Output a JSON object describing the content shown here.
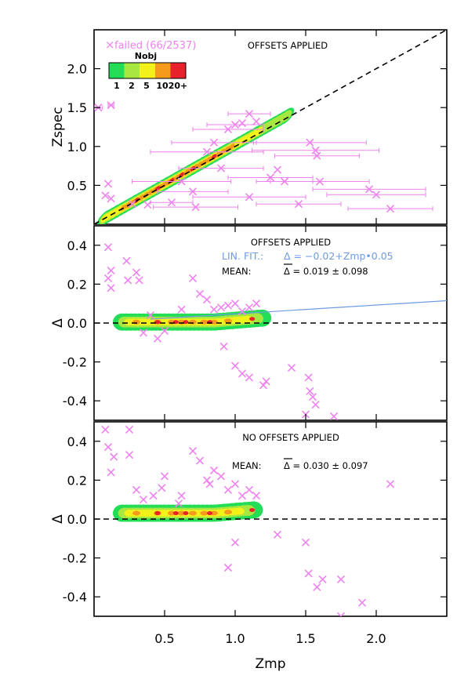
{
  "colors": {
    "failed": "#ee82ee",
    "fit": "#6f9be0",
    "density": [
      "#22dd55",
      "#a8e640",
      "#f2f21a",
      "#f59a1a",
      "#e8222a"
    ]
  },
  "chart_data": {
    "type": "scatter",
    "x_axis": {
      "label": "Zmp",
      "range": [
        0.0,
        2.5
      ],
      "ticks": [
        "0.5",
        "1.0",
        "1.5",
        "2.0"
      ]
    },
    "legend": {
      "failed_label": "failed (66/2537)",
      "colorbar_title": "Nobj",
      "colorbar_labels": [
        "1",
        "2",
        "5",
        "10",
        "20+"
      ]
    },
    "panels": [
      {
        "name": "zspec_vs_zmp",
        "ylabel": "Zspec",
        "ylim": [
          0.0,
          2.5
        ],
        "yticks": [
          0.5,
          1.0,
          1.5,
          2.0
        ],
        "ytick_labels": [
          "0.5",
          "1.0",
          "1.5",
          "2.0"
        ],
        "annotation": "OFFSETS APPLIED",
        "reference_line": "y = x",
        "density_region": [
          [
            0.05,
            0.08
          ],
          [
            0.3,
            0.3
          ],
          [
            0.5,
            0.5
          ],
          [
            0.7,
            0.75
          ],
          [
            0.9,
            1.0
          ],
          [
            1.1,
            1.2
          ],
          [
            1.25,
            1.37
          ]
        ],
        "failed_points": [
          {
            "x": 0.03,
            "y": 1.5,
            "err": 0.03
          },
          {
            "x": 0.12,
            "y": 1.53,
            "err": 0.02
          },
          {
            "x": 0.1,
            "y": 0.52
          },
          {
            "x": 0.08,
            "y": 0.37
          },
          {
            "x": 0.12,
            "y": 0.33
          },
          {
            "x": 0.27,
            "y": 0.26
          },
          {
            "x": 0.38,
            "y": 0.25
          },
          {
            "x": 0.55,
            "y": 0.28,
            "err": 0.15
          },
          {
            "x": 0.62,
            "y": 0.55,
            "err": 0.35
          },
          {
            "x": 0.7,
            "y": 0.42,
            "err": 0.25
          },
          {
            "x": 0.8,
            "y": 0.93,
            "err": 0.4
          },
          {
            "x": 0.85,
            "y": 1.05,
            "err": 0.3
          },
          {
            "x": 0.9,
            "y": 0.72,
            "err": 0.3
          },
          {
            "x": 0.95,
            "y": 1.22,
            "err": 0.25
          },
          {
            "x": 1.0,
            "y": 1.28,
            "err": 0.2
          },
          {
            "x": 1.05,
            "y": 1.3
          },
          {
            "x": 1.1,
            "y": 1.42,
            "err": 0.15
          },
          {
            "x": 1.15,
            "y": 1.32
          },
          {
            "x": 1.1,
            "y": 0.35,
            "err": 0.4
          },
          {
            "x": 1.25,
            "y": 0.6,
            "err": 0.3
          },
          {
            "x": 1.3,
            "y": 0.7
          },
          {
            "x": 1.35,
            "y": 0.55,
            "err": 0.2
          },
          {
            "x": 1.53,
            "y": 1.05,
            "err": 0.4
          },
          {
            "x": 1.57,
            "y": 0.95,
            "err": 0.45
          },
          {
            "x": 1.58,
            "y": 0.88,
            "err": 0.3
          },
          {
            "x": 1.6,
            "y": 0.55,
            "err": 0.35
          },
          {
            "x": 1.95,
            "y": 0.45,
            "err": 0.4
          },
          {
            "x": 2.0,
            "y": 0.38,
            "err": 0.35
          },
          {
            "x": 2.1,
            "y": 0.2,
            "err": 0.3
          },
          {
            "x": 1.45,
            "y": 0.26,
            "err": 0.3
          },
          {
            "x": 0.72,
            "y": 0.22,
            "err": 0.3
          }
        ]
      },
      {
        "name": "delta_offsets_applied",
        "ylabel": "Δ",
        "ylim": [
          -0.5,
          0.5
        ],
        "yticks": [
          -0.4,
          -0.2,
          0.0,
          0.2,
          0.4
        ],
        "ytick_labels": [
          "-0.4",
          "-0.2",
          "0.0",
          "0.2",
          "0.4"
        ],
        "annotation": "OFFSETS APPLIED",
        "fit_label": "LIN. FIT.:",
        "fit_equation": "Δ = −0.02+Zmp•0.05",
        "mean_label": "MEAN:",
        "mean_value": "Δ = 0.019 ± 0.098",
        "fit": {
          "intercept": -0.02,
          "slope": 0.05
        },
        "failed_points": [
          {
            "x": 0.1,
            "y": 0.39
          },
          {
            "x": 0.12,
            "y": 0.27
          },
          {
            "x": 0.1,
            "y": 0.23
          },
          {
            "x": 0.12,
            "y": 0.18
          },
          {
            "x": 0.23,
            "y": 0.32
          },
          {
            "x": 0.24,
            "y": 0.22
          },
          {
            "x": 0.3,
            "y": 0.26
          },
          {
            "x": 0.32,
            "y": 0.22
          },
          {
            "x": 0.4,
            "y": 0.04
          },
          {
            "x": 0.35,
            "y": -0.05
          },
          {
            "x": 0.45,
            "y": -0.08
          },
          {
            "x": 0.5,
            "y": -0.04
          },
          {
            "x": 0.62,
            "y": 0.07
          },
          {
            "x": 0.7,
            "y": 0.23
          },
          {
            "x": 0.75,
            "y": 0.15
          },
          {
            "x": 0.8,
            "y": 0.12
          },
          {
            "x": 0.85,
            "y": 0.07
          },
          {
            "x": 0.9,
            "y": 0.08
          },
          {
            "x": 0.95,
            "y": 0.09
          },
          {
            "x": 1.0,
            "y": 0.1
          },
          {
            "x": 1.05,
            "y": 0.06
          },
          {
            "x": 1.1,
            "y": 0.08
          },
          {
            "x": 1.15,
            "y": 0.1
          },
          {
            "x": 0.92,
            "y": -0.12
          },
          {
            "x": 1.0,
            "y": -0.22
          },
          {
            "x": 1.05,
            "y": -0.26
          },
          {
            "x": 1.1,
            "y": -0.28
          },
          {
            "x": 1.2,
            "y": -0.32
          },
          {
            "x": 1.22,
            "y": -0.3
          },
          {
            "x": 1.4,
            "y": -0.23
          },
          {
            "x": 1.52,
            "y": -0.28
          },
          {
            "x": 1.53,
            "y": -0.35
          },
          {
            "x": 1.55,
            "y": -0.38
          },
          {
            "x": 1.57,
            "y": -0.42
          },
          {
            "x": 1.5,
            "y": -0.47
          },
          {
            "x": 1.7,
            "y": -0.48
          }
        ]
      },
      {
        "name": "delta_no_offsets",
        "ylabel": "Δ",
        "ylim": [
          -0.5,
          0.5
        ],
        "yticks": [
          -0.4,
          -0.2,
          0.0,
          0.2,
          0.4
        ],
        "ytick_labels": [
          "-0.4",
          "-0.2",
          "0.0",
          "0.2",
          "0.4"
        ],
        "annotation": "NO OFFSETS APPLIED",
        "mean_label": "MEAN:",
        "mean_value": "Δ = 0.030 ± 0.097",
        "failed_points": [
          {
            "x": 0.08,
            "y": 0.46
          },
          {
            "x": 0.25,
            "y": 0.46
          },
          {
            "x": 0.1,
            "y": 0.37
          },
          {
            "x": 0.14,
            "y": 0.32
          },
          {
            "x": 0.25,
            "y": 0.33
          },
          {
            "x": 0.12,
            "y": 0.24
          },
          {
            "x": 0.3,
            "y": 0.15
          },
          {
            "x": 0.35,
            "y": 0.1
          },
          {
            "x": 0.42,
            "y": 0.12
          },
          {
            "x": 0.48,
            "y": 0.16
          },
          {
            "x": 0.5,
            "y": 0.22
          },
          {
            "x": 0.6,
            "y": 0.08
          },
          {
            "x": 0.62,
            "y": 0.12
          },
          {
            "x": 0.7,
            "y": 0.35
          },
          {
            "x": 0.75,
            "y": 0.3
          },
          {
            "x": 0.8,
            "y": 0.2
          },
          {
            "x": 0.82,
            "y": 0.18
          },
          {
            "x": 0.85,
            "y": 0.25
          },
          {
            "x": 0.9,
            "y": 0.22
          },
          {
            "x": 0.95,
            "y": 0.15
          },
          {
            "x": 1.0,
            "y": 0.18
          },
          {
            "x": 1.05,
            "y": 0.12
          },
          {
            "x": 1.1,
            "y": 0.15
          },
          {
            "x": 1.15,
            "y": 0.12
          },
          {
            "x": 1.0,
            "y": -0.12
          },
          {
            "x": 0.95,
            "y": -0.25
          },
          {
            "x": 1.3,
            "y": -0.08
          },
          {
            "x": 1.5,
            "y": -0.12
          },
          {
            "x": 1.52,
            "y": -0.28
          },
          {
            "x": 1.58,
            "y": -0.35
          },
          {
            "x": 1.62,
            "y": -0.31
          },
          {
            "x": 1.75,
            "y": -0.31
          },
          {
            "x": 1.9,
            "y": -0.43
          },
          {
            "x": 1.75,
            "y": -0.5
          },
          {
            "x": 2.1,
            "y": 0.18
          }
        ]
      }
    ]
  }
}
